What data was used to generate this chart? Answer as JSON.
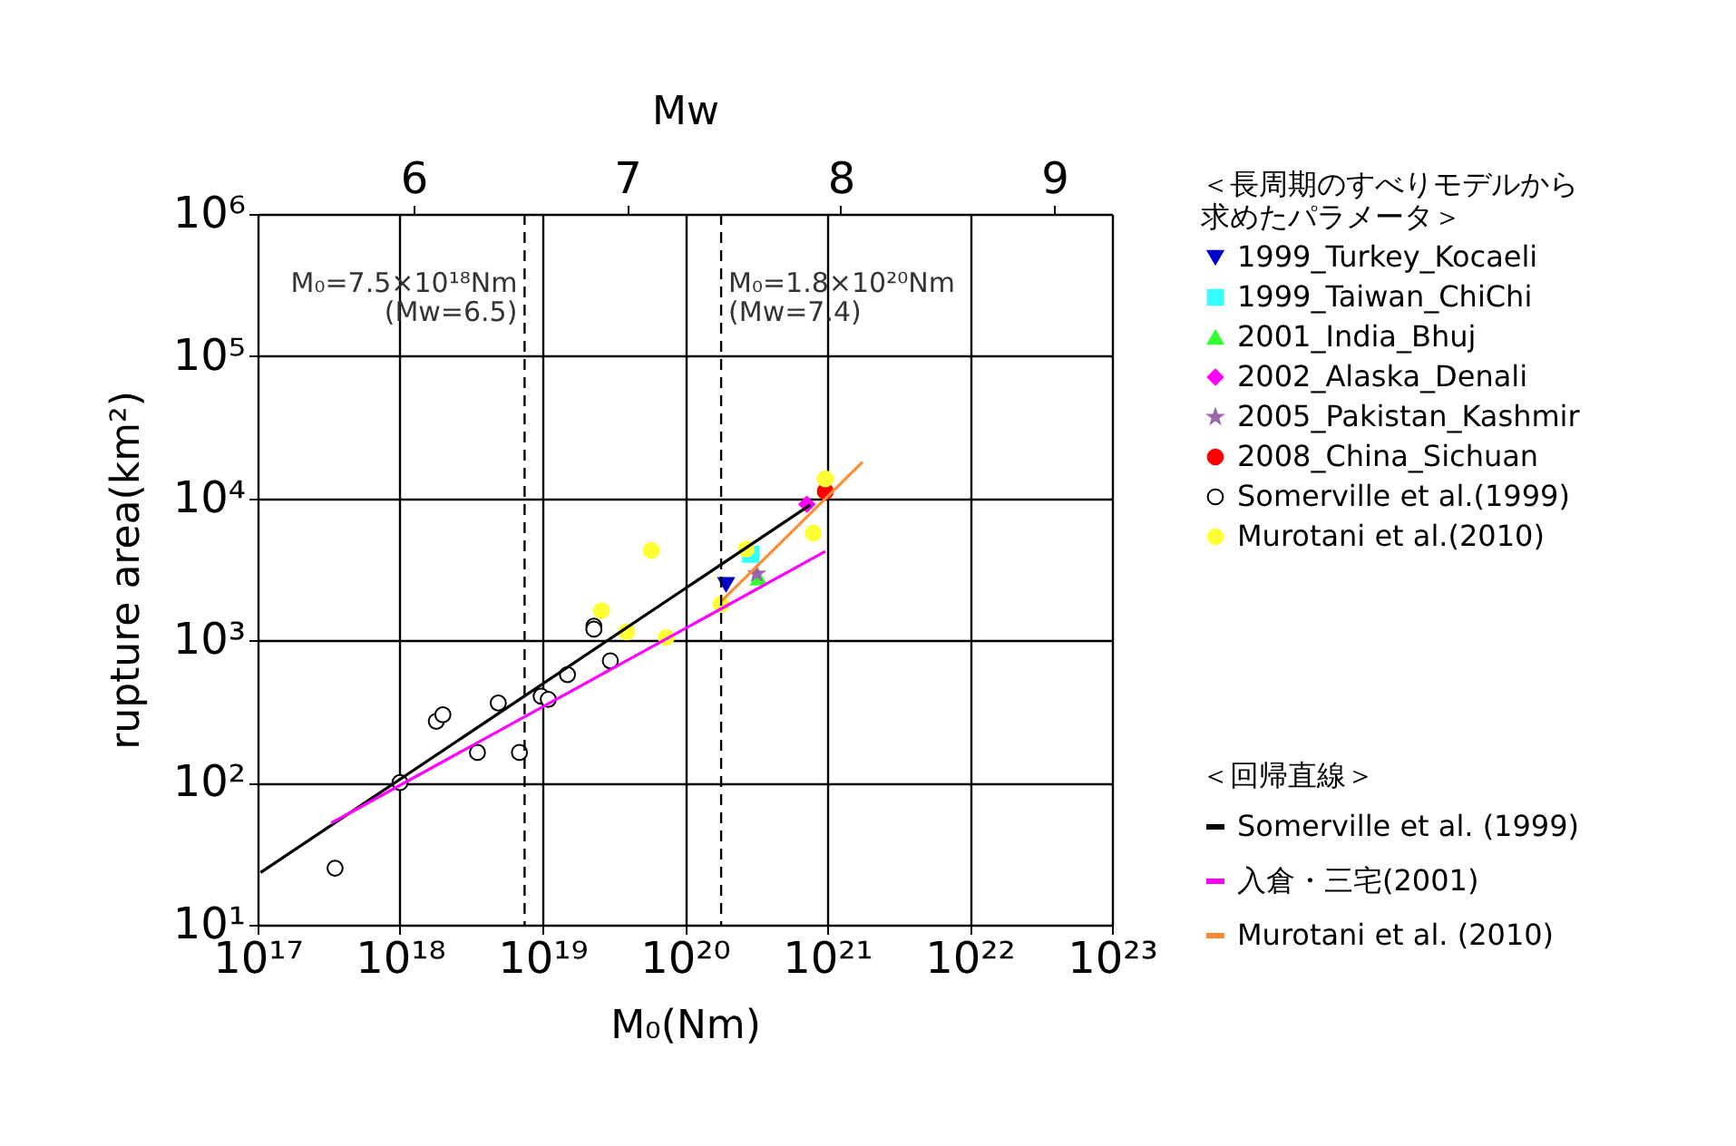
{
  "chart_data": {
    "type": "scatter",
    "xlabel": "M₀(Nm)",
    "ylabel": "rupture area(km²)",
    "x2label": "Mw",
    "log": "xy",
    "grid": true,
    "legend": "right",
    "legend_title": [
      [
        "＜長周期のすべりモデルから",
        "求めたパラメータ＞"
      ],
      "＜回帰直線＞"
    ],
    "xlim": [
      1e+17,
      1e+23
    ],
    "xticks": [
      {
        "value": 1e+17,
        "label": "10¹⁷"
      },
      {
        "value": 1e+18,
        "label": "10¹⁸"
      },
      {
        "value": 1e+19,
        "label": "10¹⁹"
      },
      {
        "value": 1e+20,
        "label": "10²⁰"
      },
      {
        "value": 1e+21,
        "label": "10²¹"
      },
      {
        "value": 1e+22,
        "label": "10²²"
      },
      {
        "value": 1e+23,
        "label": "10²³"
      }
    ],
    "ylim": [
      10,
      1000000
    ],
    "yticks": [
      {
        "value": 10,
        "label": "10¹"
      },
      {
        "value": 100,
        "label": "10²"
      },
      {
        "value": 1000,
        "label": "10³"
      },
      {
        "value": 10000,
        "label": "10⁴"
      },
      {
        "value": 100000,
        "label": "10⁵"
      },
      {
        "value": 1000000,
        "label": "10⁶"
      }
    ],
    "x2lim": [
      5.27,
      9.27
    ],
    "x2ticks": [
      6,
      7,
      8,
      9
    ],
    "ref_lines": [
      {
        "axis": "x",
        "value": 7.5e+18,
        "color": "#000000",
        "line_style": "dashed"
      },
      {
        "axis": "x",
        "value": 1.8e+20,
        "color": "#000000",
        "line_style": "dashed"
      }
    ],
    "annotations": [
      {
        "text": "M₀=7.5×10¹⁸Nm\n(Mw=6.5)",
        "x": 7.5e+18,
        "y": 400000
      },
      {
        "text": "M₀=1.8×10²⁰Nm\n(Mw=7.4)",
        "x": 1.8e+20,
        "y": 400000
      }
    ],
    "series": [
      {
        "name": "1999_Turkey_Kocaeli",
        "marker": "triangle-down",
        "color": "#0000cc",
        "x": [
          1.95e+20
        ],
        "values": [
          2470
        ]
      },
      {
        "name": "1999_Taiwan_ChiChi",
        "marker": "square",
        "color": "#33ffff",
        "x": [
          2.9e+20
        ],
        "values": [
          4030
        ]
      },
      {
        "name": "2001_India_Bhuj",
        "marker": "triangle",
        "color": "#33ff33",
        "x": [
          3.3e+20
        ],
        "values": [
          2750
        ]
      },
      {
        "name": "2002_Alaska_Denali",
        "marker": "diamond",
        "color": "#ff00ff",
        "x": [
          7.2e+20
        ],
        "values": [
          9080
        ]
      },
      {
        "name": "2005_Pakistan_Kashmir",
        "marker": "star",
        "color": "#9966aa",
        "x": [
          3.2e+20
        ],
        "values": [
          2950
        ]
      },
      {
        "name": "2008_China_Sichuan",
        "marker": "circle",
        "color": "#ff0000",
        "x": [
          9.7e+20
        ],
        "values": [
          11200
        ]
      },
      {
        "name": "Somerville et al.(1999)",
        "marker": "circle",
        "color": "#ffffff",
        "x": [
          3.5e+17,
          1e+18,
          1.8e+18,
          2e+18,
          3.5e+18,
          4.9e+18,
          6.9e+18,
          9.8e+18,
          1.1e+19,
          1.5e+19,
          2.3e+19,
          2.3e+19,
          3e+19
        ],
        "values": [
          25,
          100,
          270,
          300,
          163,
          363,
          163,
          405,
          385,
          575,
          1260,
          1200,
          720
        ]
      },
      {
        "name": "Murotani et al.(2010)",
        "marker": "circle",
        "color": "#ffff33",
        "x": [
          2.6e+19,
          3.9e+19,
          5.8e+19,
          7.4e+19,
          1.8e+20,
          2.7e+20,
          8e+20,
          9.7e+20
        ],
        "values": [
          1620,
          1150,
          4300,
          1050,
          1800,
          4400,
          5700,
          13700
        ]
      },
      {
        "name": "Somerville et al. (1999)",
        "type": "line",
        "color": "#000000",
        "x": [
          1.05e+17,
          7.6e+20
        ],
        "values": [
          23.3,
          8980
        ]
      },
      {
        "name": "入倉・三宅(2001)",
        "type": "line",
        "color": "#ff00ff",
        "x": [
          3.3e+17,
          9.7e+20
        ],
        "values": [
          52,
          4230
        ]
      },
      {
        "name": "Murotani et al. (2010)",
        "type": "line",
        "color": "#ff8c33",
        "x": [
          1.8e+20,
          1.77e+21
        ],
        "values": [
          1880,
          18000
        ]
      }
    ]
  }
}
